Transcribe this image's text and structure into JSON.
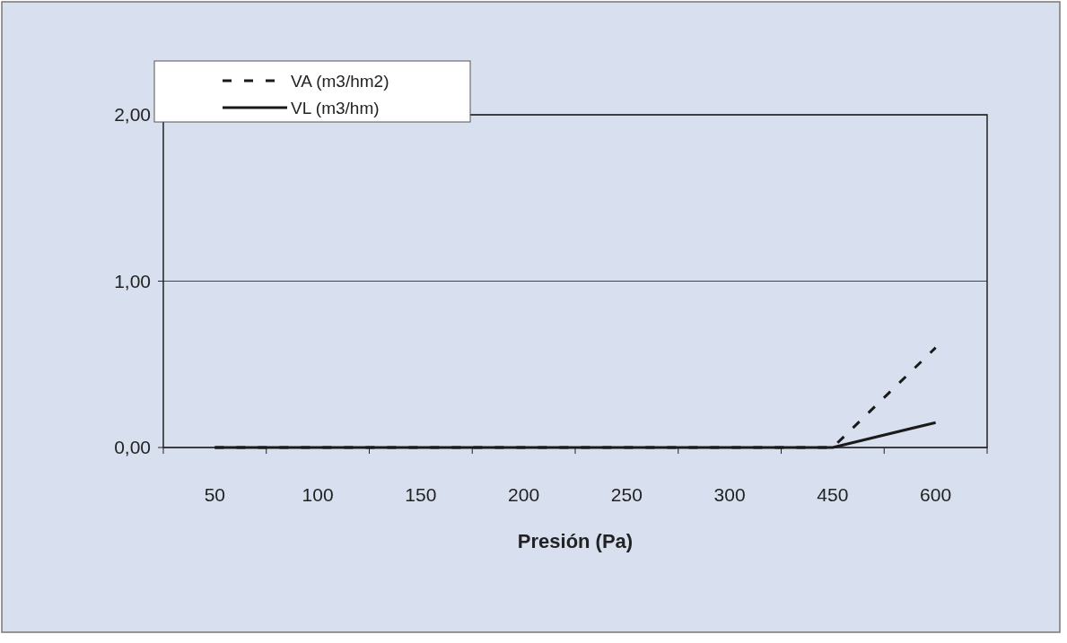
{
  "chart_data": {
    "type": "line",
    "xlabel": "Presión (Pa)",
    "categories": [
      "50",
      "100",
      "150",
      "200",
      "250",
      "300",
      "450",
      "600"
    ],
    "series": [
      {
        "name": "VA (m3/hm2)",
        "color": "#1a1a1a",
        "line_style": "dashed",
        "values": [
          0,
          0,
          0,
          0,
          0,
          0,
          0,
          0.6
        ]
      },
      {
        "name": "VL (m3/hm)",
        "color": "#1a1a1a",
        "line_style": "solid",
        "values": [
          0,
          0,
          0,
          0,
          0,
          0,
          0,
          0.15
        ]
      }
    ],
    "ylim": [
      0,
      2
    ],
    "yticks": [
      {
        "value": 0,
        "label": "0,00"
      },
      {
        "value": 1,
        "label": "1,00"
      },
      {
        "value": 2,
        "label": "2,00"
      }
    ],
    "grid": "y",
    "legend": "top left",
    "marker": "none"
  }
}
